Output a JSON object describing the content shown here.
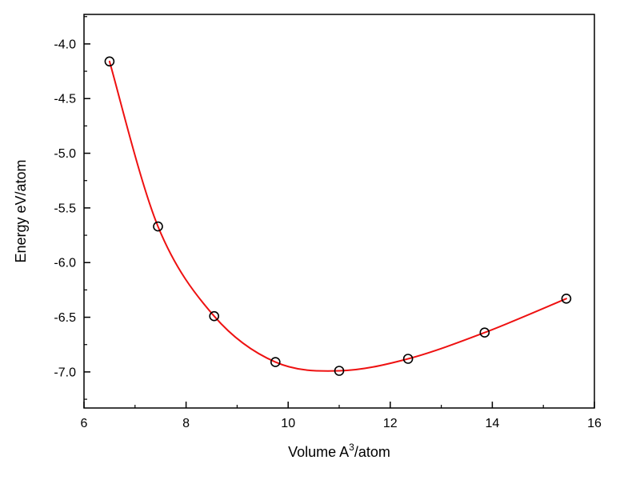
{
  "chart_data": {
    "type": "scatter",
    "title": "",
    "xlabel": {
      "main": "Volume A",
      "sup": "3",
      "rest": "/atom"
    },
    "ylabel": "Energy eV/atom",
    "xlim": [
      6,
      16
    ],
    "ylim": [
      -7.33,
      -3.73
    ],
    "grid": false,
    "legend": "none",
    "axis_color": "#000000",
    "background_color": "#ffffff",
    "x_ticks": [
      {
        "v": 6,
        "label": "6"
      },
      {
        "v": 8,
        "label": "8"
      },
      {
        "v": 10,
        "label": "10"
      },
      {
        "v": 12,
        "label": "12"
      },
      {
        "v": 14,
        "label": "14"
      },
      {
        "v": 16,
        "label": "16"
      }
    ],
    "x_minor_ticks": [
      7,
      9,
      11,
      13,
      15
    ],
    "y_ticks": [
      {
        "v": -7.0,
        "label": "-7.0"
      },
      {
        "v": -6.5,
        "label": "-6.5"
      },
      {
        "v": -6.0,
        "label": "-6.0"
      },
      {
        "v": -5.5,
        "label": "-5.5"
      },
      {
        "v": -5.0,
        "label": "-5.0"
      },
      {
        "v": -4.5,
        "label": "-4.5"
      },
      {
        "v": -4.0,
        "label": "-4.0"
      }
    ],
    "y_minor_ticks": [
      -7.25,
      -6.75,
      -6.25,
      -5.75,
      -5.25,
      -4.75,
      -4.25,
      -3.75
    ],
    "series": [
      {
        "name": "calculated-points",
        "type": "scatter",
        "marker": "open-circle",
        "color": "#000000",
        "x": [
          6.5,
          7.45,
          8.55,
          9.75,
          11.0,
          12.35,
          13.85,
          15.45
        ],
        "y": [
          -4.16,
          -5.67,
          -6.49,
          -6.91,
          -6.99,
          -6.88,
          -6.64,
          -6.33
        ]
      },
      {
        "name": "eos-fit-curve",
        "type": "smooth-line",
        "color": "#ee1111",
        "width": 2
      }
    ]
  }
}
